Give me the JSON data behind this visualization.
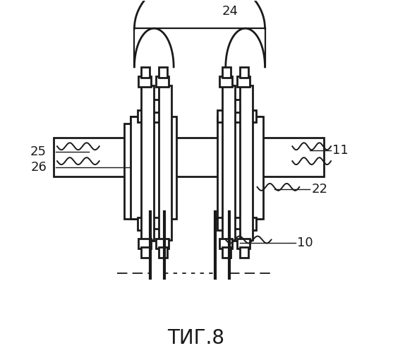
{
  "title": "ΤИГ.8",
  "line_color": "#1a1a1a",
  "bg_color": "#ffffff",
  "title_fontsize": 20,
  "label_fontsize": 13
}
